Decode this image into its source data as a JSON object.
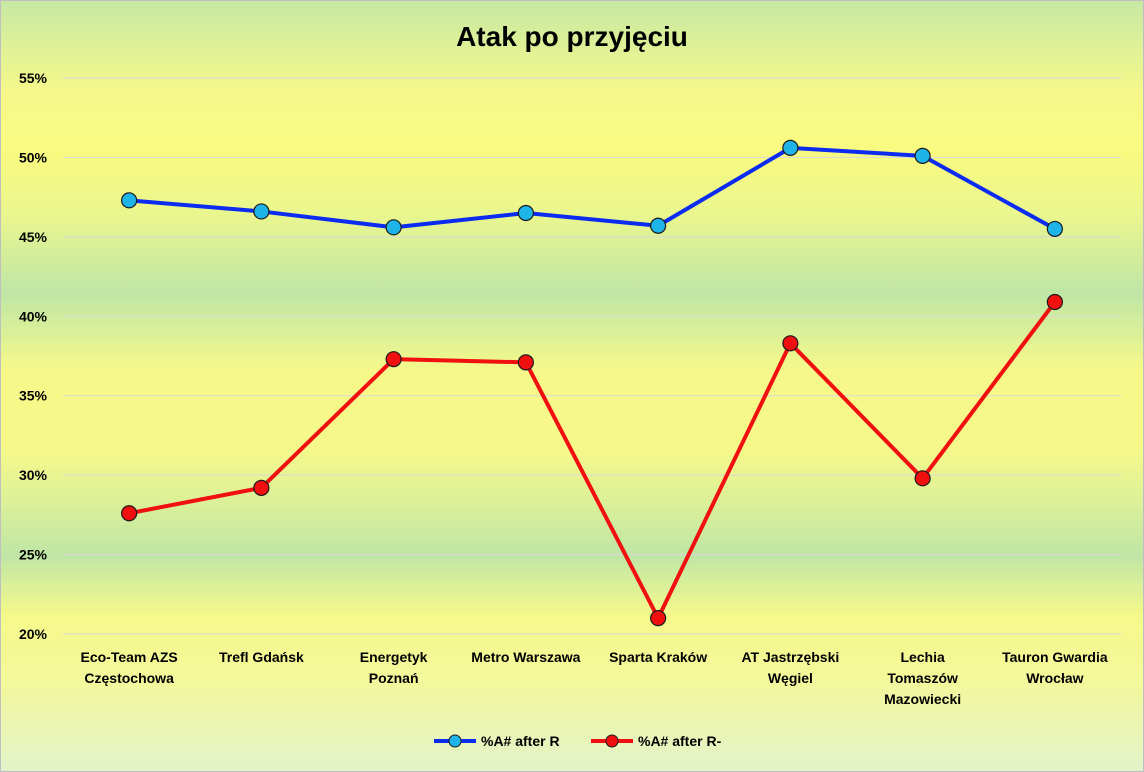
{
  "chart_data": {
    "type": "line",
    "title": "Atak po przyjęciu",
    "xlabel": "",
    "ylabel": "",
    "ylim": [
      20,
      55
    ],
    "y_ticks": [
      "20%",
      "25%",
      "30%",
      "35%",
      "40%",
      "45%",
      "50%",
      "55%"
    ],
    "y_tick_values": [
      20,
      25,
      30,
      35,
      40,
      45,
      50,
      55
    ],
    "grid": true,
    "legend_position": "bottom",
    "categories": [
      [
        "Eco-Team AZS",
        "Częstochowa"
      ],
      [
        "Trefl  Gdańsk"
      ],
      [
        "Energetyk",
        "Poznań"
      ],
      [
        "Metro  Warszawa"
      ],
      [
        "Sparta  Kraków"
      ],
      [
        "AT  Jastrzębski",
        "Węgiel"
      ],
      [
        "Lechia",
        "Tomaszów",
        "Mazowiecki"
      ],
      [
        "Tauron  Gwardia",
        "Wrocław"
      ]
    ],
    "series": [
      {
        "name": "%A# after R",
        "line_color": "#0b2cf0",
        "marker_color": "#1fb4e8",
        "values": [
          47.3,
          46.6,
          45.6,
          46.5,
          45.7,
          50.6,
          50.1,
          45.5
        ]
      },
      {
        "name": "%A# after R-",
        "line_color": "#f01010",
        "marker_color": "#f01010",
        "values": [
          27.6,
          29.2,
          37.3,
          37.1,
          21.0,
          38.3,
          29.8,
          40.9
        ]
      }
    ]
  }
}
